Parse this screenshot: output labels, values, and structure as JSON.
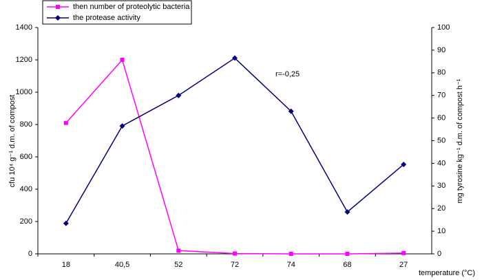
{
  "chart_data": {
    "type": "line",
    "categories": [
      "18",
      "40,5",
      "52",
      "72",
      "74",
      "68",
      "27"
    ],
    "series": [
      {
        "name": "then number of proteolytic bacteria",
        "color": "#ff00ff",
        "marker": "square",
        "values": [
          810,
          1200,
          20,
          2,
          0,
          0,
          5
        ]
      },
      {
        "name": "the protease activity",
        "color": "#000080",
        "marker": "diamond",
        "axis": "y2",
        "values": [
          13.5,
          56.5,
          70,
          86.5,
          63,
          18.5,
          39.5
        ]
      }
    ],
    "ylim": [
      0,
      1400
    ],
    "yticks": [
      0,
      200,
      400,
      600,
      800,
      1000,
      1200,
      1400
    ],
    "y2lim": [
      0,
      100
    ],
    "y2ticks": [
      0,
      10,
      20,
      30,
      40,
      50,
      60,
      70,
      80,
      90,
      100
    ],
    "ylabel": "cfu 10⁴ g⁻¹ d.m. of compost",
    "y2label": "mg tyrosine kg⁻¹ d.m. of compost h⁻¹",
    "xlabel": "temperature (°C)",
    "annotation": "r=-0,25",
    "grid": false,
    "legend": "top-left"
  }
}
